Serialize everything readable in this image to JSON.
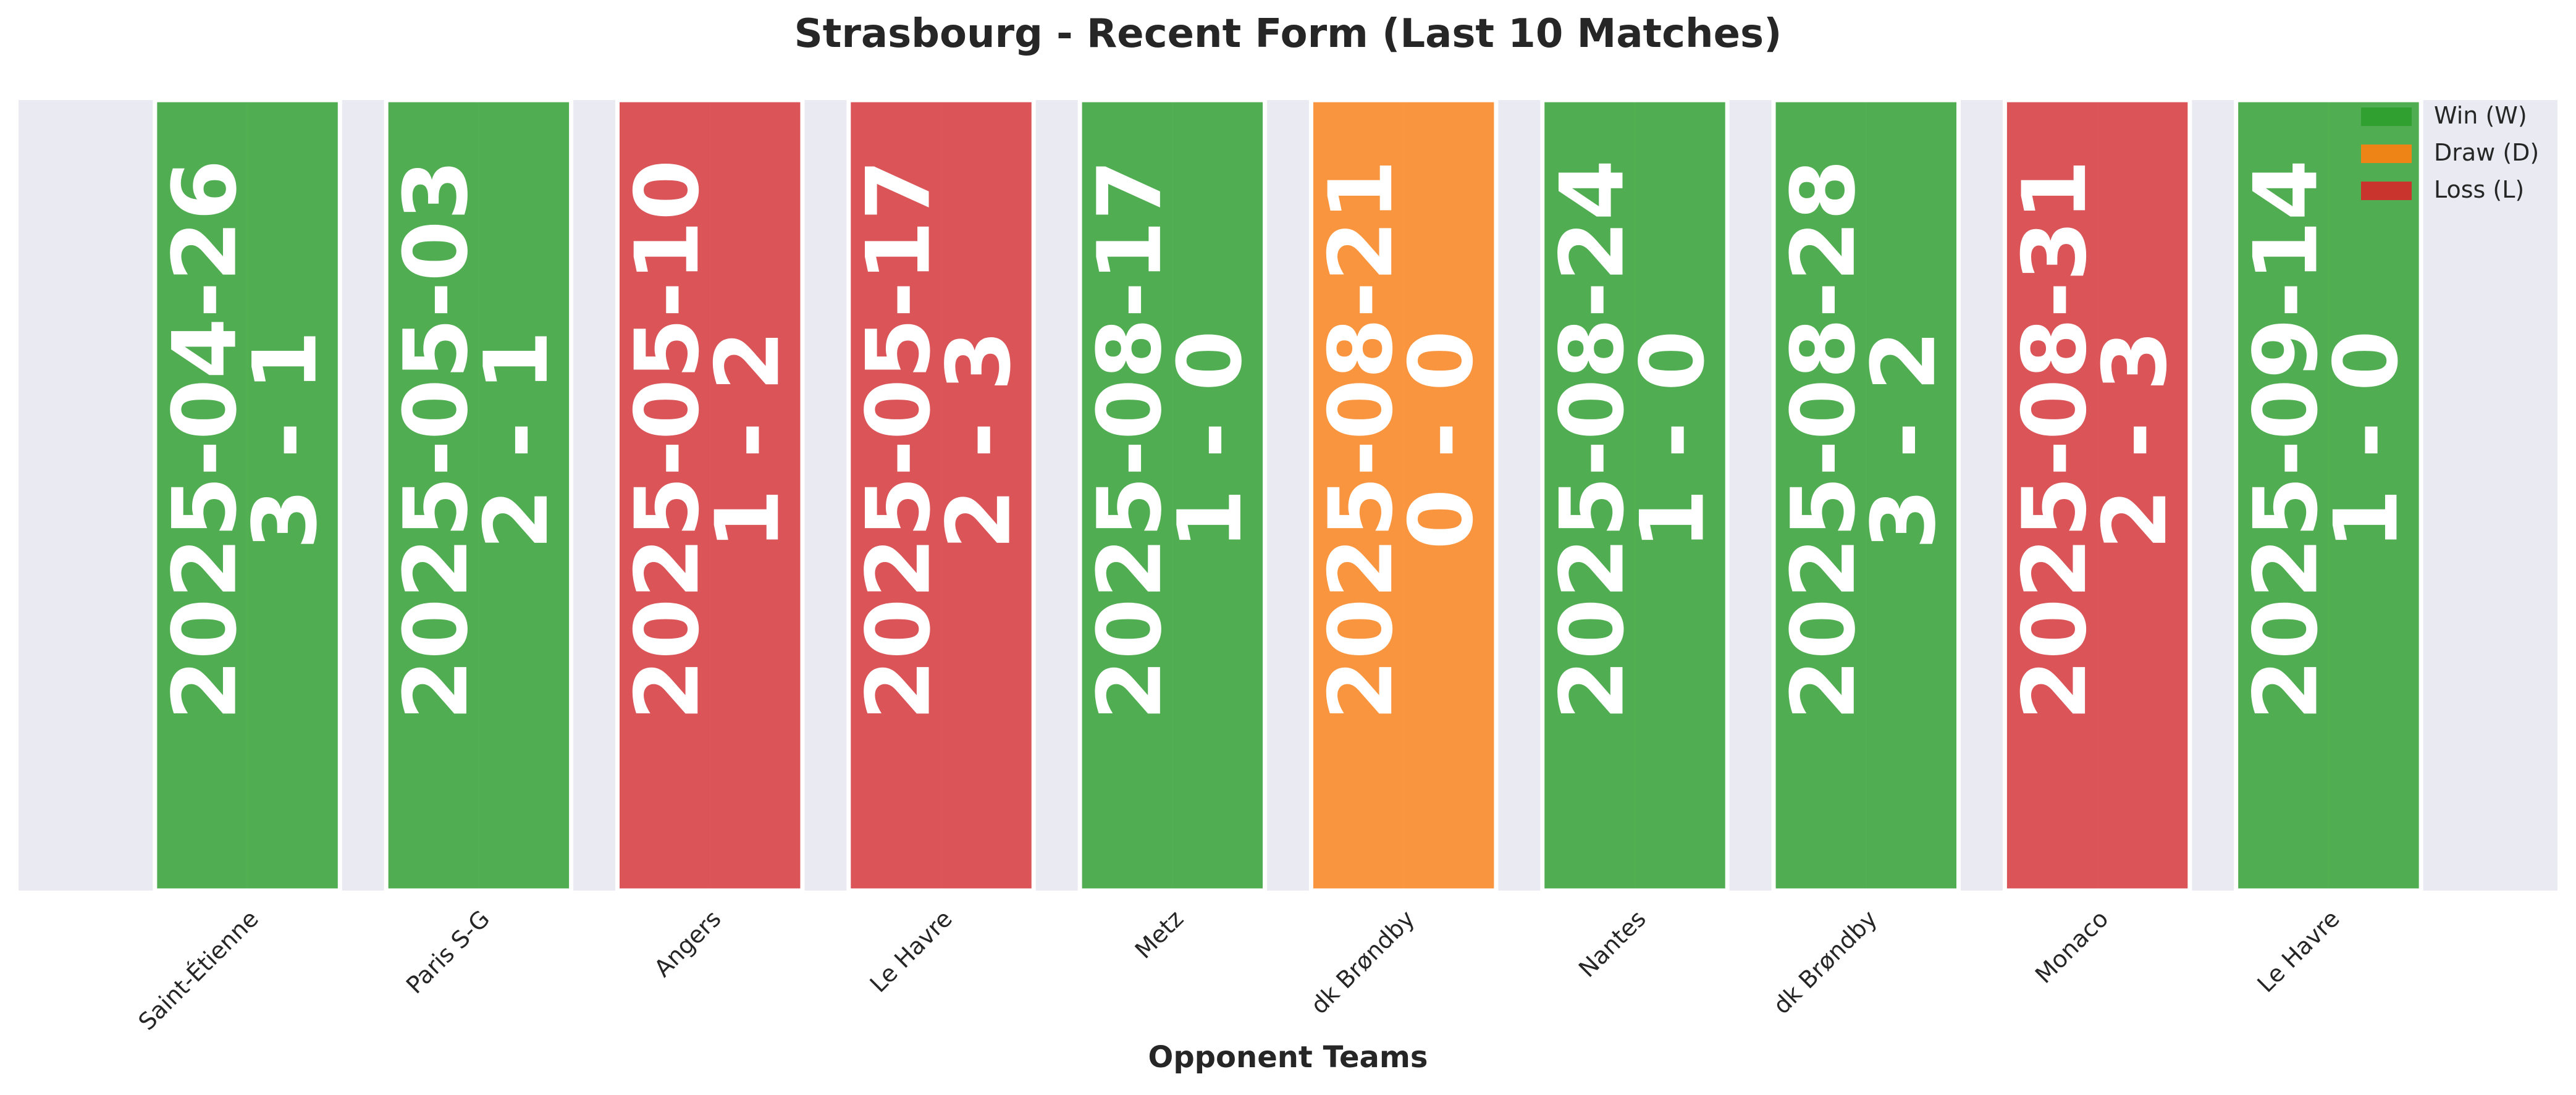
{
  "chart_data": {
    "type": "bar",
    "title": "Strasbourg - Recent Form (Last 10 Matches)",
    "xlabel": "Opponent Teams",
    "ylabel": "",
    "grid": true,
    "legend_position": "top-right",
    "categories": [
      "Saint-Étienne",
      "Paris S-G",
      "Angers",
      "Le Havre",
      "Metz",
      "dk Brøndby",
      "Nantes",
      "dk Brøndby",
      "Monaco",
      "Le Havre"
    ],
    "values": [
      1,
      1,
      1,
      1,
      1,
      1,
      1,
      1,
      1,
      1
    ],
    "ylim": [
      0,
      1
    ],
    "matches": [
      {
        "opponent": "Saint-Étienne",
        "date": "2025-04-26",
        "score": "3 - 1",
        "result": "W"
      },
      {
        "opponent": "Paris S-G",
        "date": "2025-05-03",
        "score": "2 - 1",
        "result": "W"
      },
      {
        "opponent": "Angers",
        "date": "2025-05-10",
        "score": "1 - 2",
        "result": "L"
      },
      {
        "opponent": "Le Havre",
        "date": "2025-05-17",
        "score": "2 - 3",
        "result": "L"
      },
      {
        "opponent": "Metz",
        "date": "2025-08-17",
        "score": "1 - 0",
        "result": "W"
      },
      {
        "opponent": "dk Brøndby",
        "date": "2025-08-21",
        "score": "0 - 0",
        "result": "D"
      },
      {
        "opponent": "Nantes",
        "date": "2025-08-24",
        "score": "1 - 0",
        "result": "W"
      },
      {
        "opponent": "dk Brøndby",
        "date": "2025-08-28",
        "score": "3 - 2",
        "result": "W"
      },
      {
        "opponent": "Monaco",
        "date": "2025-08-31",
        "score": "2 - 3",
        "result": "L"
      },
      {
        "opponent": "Le Havre",
        "date": "2025-09-14",
        "score": "1 - 0",
        "result": "W"
      }
    ],
    "legend": [
      {
        "key": "W",
        "label": "Win (W)",
        "color": "#2ca02c"
      },
      {
        "key": "D",
        "label": "Draw (D)",
        "color": "#ff7f0e"
      },
      {
        "key": "L",
        "label": "Loss (L)",
        "color": "#d62728"
      }
    ],
    "colors": {
      "W": "#3fa63f",
      "D": "#fc8c2b",
      "L": "#d84447",
      "background": "#eaeaf2",
      "grid": "#ffffff"
    }
  }
}
